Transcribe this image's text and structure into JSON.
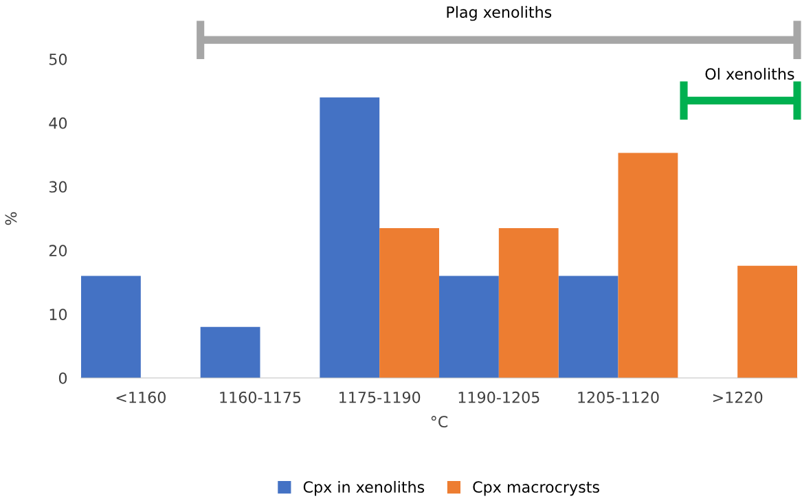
{
  "chart_data": {
    "type": "bar",
    "xlabel": "°C",
    "ylabel": "%",
    "categories": [
      "<1160",
      "1160-1175",
      "1175-1190",
      "1190-1205",
      "1205-1120",
      ">1220"
    ],
    "series": [
      {
        "name": "Cpx in xenoliths",
        "color": "#4472c4",
        "values": [
          16,
          8,
          44,
          16,
          16,
          null
        ]
      },
      {
        "name": "Cpx macrocrysts",
        "color": "#ed7d31",
        "values": [
          null,
          null,
          23.5,
          23.5,
          35.3,
          17.6
        ]
      }
    ],
    "ylim": [
      0,
      50
    ],
    "yticks": [
      0,
      10,
      20,
      30,
      40,
      50
    ],
    "annotations": [
      "Plag xenoliths",
      "Ol xenoliths"
    ],
    "grid": false,
    "legend": "bottom"
  }
}
